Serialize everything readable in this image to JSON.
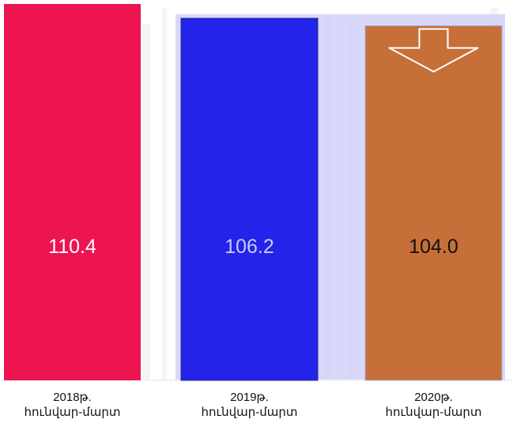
{
  "chart_data": {
    "type": "bar",
    "categories": [
      [
        "2018թ.",
        "հունվար-մարտ"
      ],
      [
        "2019թ.",
        "հունվար-մարտ"
      ],
      [
        "2020թ.",
        "հունվար-մարտ"
      ]
    ],
    "values": [
      110.4,
      106.2,
      104.0
    ],
    "value_labels": [
      "110.4",
      "106.2",
      "104.0"
    ],
    "bar_colors": [
      "#EC1552",
      "#2323EA",
      "#C66F38"
    ],
    "value_label_colors": [
      "#ffffff",
      "#c9cdf5",
      "#111111"
    ],
    "ylim": [
      0,
      110.4
    ],
    "grid": false,
    "legend": "none",
    "annotation": "down-arrow-on-last-bar",
    "highlight_color": "#CDCDF8"
  }
}
